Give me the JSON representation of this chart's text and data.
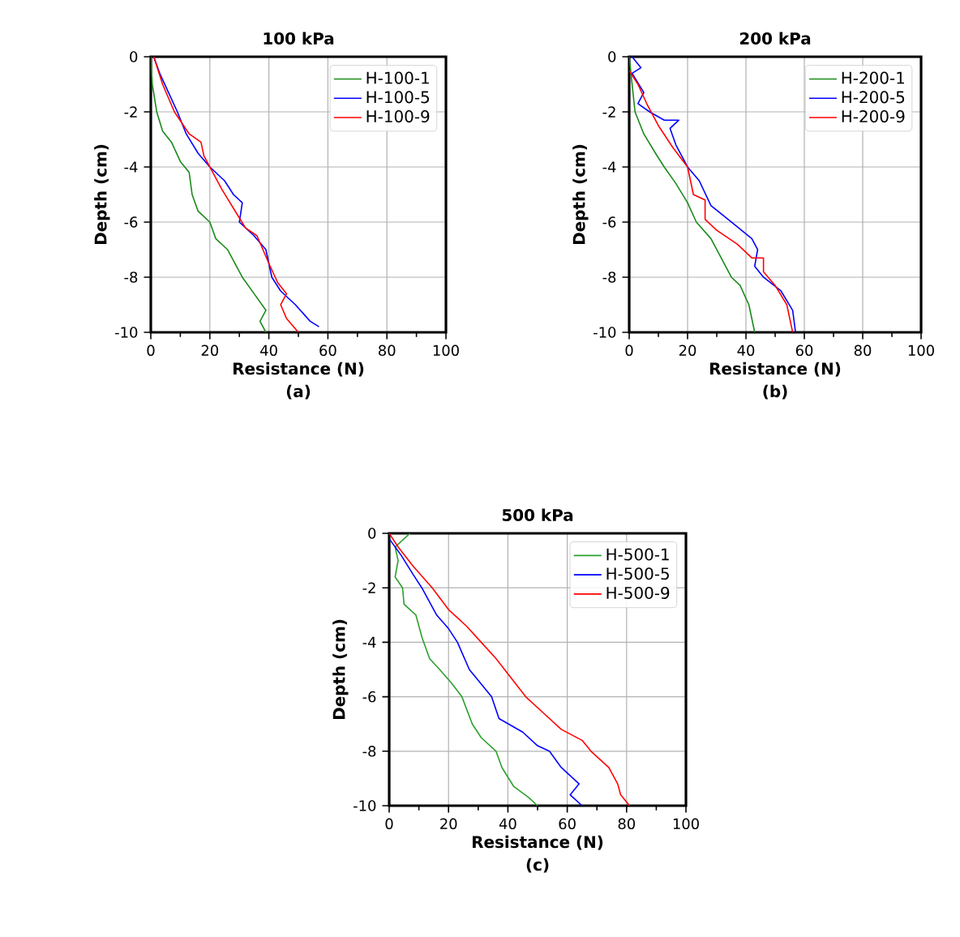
{
  "chart_data": [
    {
      "type": "line",
      "title": "100 kPa",
      "xlabel": "Resistance (N)",
      "ylabel": "Depth (cm)",
      "annotations": [
        "(a)"
      ],
      "xlim": [
        0,
        100
      ],
      "ylim": [
        -10,
        0
      ],
      "xticks": [
        0,
        20,
        40,
        60,
        80,
        100
      ],
      "yticks": [
        0,
        -2,
        -4,
        -6,
        -8,
        -10
      ],
      "grid": true,
      "legend": "top right",
      "series": [
        {
          "name": "H-100-1",
          "color": "#1a8a1a",
          "x": [
            0,
            0.5,
            2,
            4,
            7,
            10,
            13,
            14,
            16,
            20,
            22,
            26,
            29,
            31,
            35,
            39,
            37,
            39
          ],
          "values": [
            0,
            -1,
            -2,
            -2.7,
            -3.1,
            -3.8,
            -4.2,
            -5,
            -5.6,
            -6,
            -6.6,
            -7,
            -7.6,
            -8,
            -8.6,
            -9.2,
            -9.6,
            -10
          ]
        },
        {
          "name": "H-100-5",
          "color": "#0000ff",
          "x": [
            1,
            3,
            6,
            9,
            12,
            16,
            20,
            25,
            28,
            31,
            30,
            35,
            39,
            41,
            44,
            49,
            54,
            57
          ],
          "values": [
            0,
            -0.6,
            -1.3,
            -2,
            -2.8,
            -3.5,
            -4,
            -4.5,
            -5,
            -5.3,
            -6,
            -6.5,
            -7,
            -8,
            -8.5,
            -9,
            -9.6,
            -9.8
          ]
        },
        {
          "name": "H-100-9",
          "color": "#ff0000",
          "x": [
            1,
            4,
            8,
            13,
            17,
            18,
            20,
            24,
            28,
            32,
            36,
            40,
            43,
            46,
            44,
            46,
            50
          ],
          "values": [
            0,
            -1,
            -2,
            -2.8,
            -3.1,
            -3.6,
            -4,
            -4.8,
            -5.5,
            -6.2,
            -6.5,
            -7.5,
            -8.2,
            -8.6,
            -9,
            -9.5,
            -10
          ]
        }
      ]
    },
    {
      "type": "line",
      "title": "200 kPa",
      "xlabel": "Resistance (N)",
      "ylabel": "Depth (cm)",
      "annotations": [
        "(b)"
      ],
      "xlim": [
        0,
        100
      ],
      "ylim": [
        -10,
        0
      ],
      "xticks": [
        0,
        20,
        40,
        60,
        80,
        100
      ],
      "yticks": [
        0,
        -2,
        -4,
        -6,
        -8,
        -10
      ],
      "grid": true,
      "legend": "top right",
      "series": [
        {
          "name": "H-200-1",
          "color": "#1a8a1a",
          "x": [
            0,
            1,
            2,
            5,
            9,
            12,
            16,
            20,
            23,
            28,
            30,
            35,
            38,
            41,
            42,
            43
          ],
          "values": [
            0,
            -1,
            -2,
            -2.8,
            -3.5,
            -4,
            -4.6,
            -5.3,
            -6,
            -6.6,
            -7,
            -8,
            -8.3,
            -9,
            -9.5,
            -10
          ]
        },
        {
          "name": "H-200-5",
          "color": "#0000ff",
          "x": [
            1,
            4,
            1,
            5,
            3,
            7,
            12,
            17,
            14,
            16,
            20,
            24,
            28,
            35,
            42,
            44,
            43,
            46,
            52,
            56,
            57
          ],
          "values": [
            0,
            -0.4,
            -0.6,
            -1.3,
            -1.7,
            -2,
            -2.3,
            -2.3,
            -2.6,
            -3.2,
            -4,
            -4.5,
            -5.4,
            -6,
            -6.6,
            -7,
            -7.6,
            -8,
            -8.5,
            -9.2,
            -10
          ]
        },
        {
          "name": "H-200-9",
          "color": "#ff0000",
          "x": [
            0,
            3,
            6,
            10,
            15,
            20,
            22,
            26,
            26,
            30,
            37,
            42,
            46,
            46,
            50,
            54,
            56
          ],
          "values": [
            -0.5,
            -1,
            -1.7,
            -2.5,
            -3.3,
            -4,
            -5,
            -5.2,
            -5.9,
            -6.3,
            -6.8,
            -7.3,
            -7.3,
            -7.8,
            -8.3,
            -9,
            -10
          ]
        }
      ]
    },
    {
      "type": "line",
      "title": "500 kPa",
      "xlabel": "Resistance (N)",
      "ylabel": "Depth (cm)",
      "annotations": [
        "(c)"
      ],
      "xlim": [
        0,
        100
      ],
      "ylim": [
        -10,
        0
      ],
      "xticks": [
        0,
        20,
        40,
        60,
        80,
        100
      ],
      "yticks": [
        0,
        -2,
        -4,
        -6,
        -8,
        -10
      ],
      "grid": true,
      "legend": "top right",
      "series": [
        {
          "name": "H-500-1",
          "color": "#2ca02c",
          "x": [
            7,
            2,
            3,
            2,
            4.5,
            5,
            9,
            11,
            13.6,
            17,
            21,
            24.5,
            28,
            31,
            36,
            38,
            42,
            47,
            50
          ],
          "values": [
            0,
            -0.5,
            -1,
            -1.6,
            -2,
            -2.6,
            -3,
            -3.8,
            -4.6,
            -5,
            -5.5,
            -6,
            -7,
            -7.5,
            -8,
            -8.6,
            -9.3,
            -9.7,
            -10
          ]
        },
        {
          "name": "H-500-5",
          "color": "#0000ff",
          "x": [
            0,
            4,
            8,
            11,
            16,
            20,
            23,
            27,
            34.5,
            37,
            45,
            50,
            54,
            58,
            64,
            61,
            65
          ],
          "values": [
            -0.2,
            -0.8,
            -1.5,
            -2,
            -3,
            -3.5,
            -4,
            -5,
            -6,
            -6.8,
            -7.3,
            -7.8,
            -8,
            -8.6,
            -9.2,
            -9.6,
            -10
          ]
        },
        {
          "name": "H-500-9",
          "color": "#ff0000",
          "x": [
            0,
            3,
            8,
            14.5,
            20,
            26,
            31,
            36,
            41,
            46,
            52,
            58,
            65,
            68,
            74,
            77,
            78,
            81
          ],
          "values": [
            0,
            -0.5,
            -1.2,
            -2,
            -2.8,
            -3.4,
            -4,
            -4.6,
            -5.3,
            -6,
            -6.6,
            -7.2,
            -7.6,
            -8,
            -8.6,
            -9.2,
            -9.6,
            -10
          ]
        }
      ]
    }
  ]
}
